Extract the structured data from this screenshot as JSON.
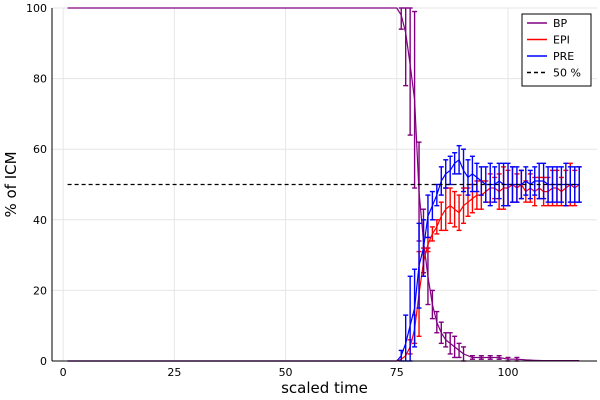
{
  "chart_data": {
    "type": "line",
    "title": "",
    "xlabel": "scaled time",
    "ylabel": "% of ICM",
    "xlim": [
      -2.5,
      120
    ],
    "ylim": [
      0,
      100
    ],
    "xticks": [
      0,
      25,
      50,
      75,
      100
    ],
    "yticks": [
      0,
      20,
      40,
      60,
      80,
      100
    ],
    "grid": true,
    "legend_position": "top-right",
    "series": [
      {
        "name": "BP",
        "color": "#800080",
        "x": [
          1,
          75,
          76,
          77,
          78,
          79,
          80,
          81,
          82,
          83,
          84,
          85,
          86,
          87,
          88,
          89,
          90,
          92,
          94,
          96,
          98,
          100,
          102,
          104,
          106,
          108,
          110,
          112,
          114,
          116
        ],
        "y": [
          100,
          100,
          98,
          93,
          84,
          74,
          48,
          34,
          24,
          16,
          11,
          8,
          6,
          5,
          4,
          3,
          2,
          1,
          1,
          1,
          1,
          0.5,
          0.5,
          0.3,
          0.2,
          0.1,
          0.1,
          0.1,
          0.1,
          0.1
        ],
        "err": [
          0,
          0,
          4,
          15,
          20,
          25,
          14,
          9,
          8,
          4,
          3,
          3,
          2,
          3,
          3,
          2,
          2,
          0.5,
          0.5,
          0.5,
          0.5,
          0.5,
          0.5,
          0,
          0,
          0,
          0,
          0,
          0,
          0
        ]
      },
      {
        "name": "EPI",
        "color": "#ff0000",
        "x": [
          1,
          75,
          76,
          77,
          78,
          79,
          80,
          81,
          82,
          83,
          84,
          85,
          86,
          87,
          88,
          89,
          90,
          91,
          92,
          93,
          94,
          95,
          96,
          97,
          98,
          99,
          100,
          101,
          102,
          103,
          104,
          105,
          106,
          107,
          108,
          109,
          110,
          111,
          112,
          113,
          114,
          115,
          116
        ],
        "y": [
          0,
          0,
          0.5,
          1.5,
          4,
          9,
          19,
          28,
          33,
          36,
          38,
          41,
          43,
          44,
          43,
          42,
          44,
          45,
          46,
          47,
          47,
          48,
          49,
          49,
          48,
          49,
          49,
          50,
          49,
          50,
          48,
          49,
          48,
          49,
          48,
          48,
          49,
          49,
          48,
          49,
          50,
          49,
          50
        ],
        "err": [
          0,
          0,
          0,
          0,
          2,
          4,
          12,
          4,
          2,
          2,
          2,
          4,
          6,
          5,
          5,
          5,
          5,
          4,
          4,
          4,
          4,
          3,
          4,
          3,
          5,
          6,
          5,
          5,
          4,
          4,
          3,
          4,
          4,
          3,
          4,
          4,
          5,
          5,
          4,
          5,
          6,
          5,
          5
        ]
      },
      {
        "name": "PRE",
        "color": "#0000ff",
        "x": [
          1,
          75,
          76,
          77,
          78,
          79,
          80,
          81,
          82,
          83,
          84,
          85,
          86,
          87,
          88,
          89,
          90,
          91,
          92,
          93,
          94,
          95,
          96,
          97,
          98,
          99,
          100,
          101,
          102,
          103,
          104,
          105,
          106,
          107,
          108,
          109,
          110,
          111,
          112,
          113,
          114,
          115,
          116
        ],
        "y": [
          0,
          0,
          1.5,
          5,
          10,
          15,
          27,
          32,
          41,
          44,
          47,
          51,
          53,
          54,
          56,
          57,
          54,
          52,
          53,
          52,
          51,
          50,
          50,
          50,
          51,
          50,
          50,
          50,
          50,
          50,
          51,
          50,
          51,
          51,
          51,
          50,
          50,
          50,
          50,
          50,
          50,
          50,
          50
        ],
        "err": [
          0,
          0,
          1.5,
          8,
          14,
          11,
          12,
          8,
          6,
          4,
          3,
          4,
          4,
          4,
          3,
          4,
          6,
          5,
          5,
          4,
          4,
          5,
          6,
          5,
          5,
          6,
          6,
          5,
          5,
          4,
          4,
          4,
          4,
          5,
          5,
          5,
          5,
          5,
          5,
          6,
          5,
          5,
          5
        ]
      },
      {
        "name": "50 %",
        "color": "#000000",
        "dashed": true,
        "x": [
          1,
          116
        ],
        "y": [
          50,
          50
        ]
      }
    ]
  }
}
